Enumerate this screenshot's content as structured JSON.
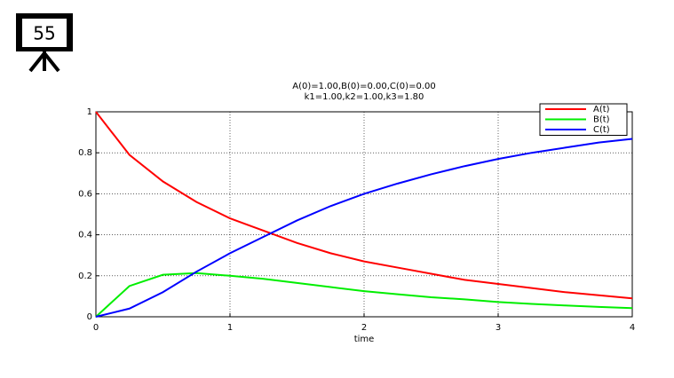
{
  "badge": "55",
  "chart_data": {
    "type": "line",
    "title": [
      "A(0)=1.00,B(0)=0.00,C(0)=0.00",
      "k1=1.00,k2=1.00,k3=1.80"
    ],
    "x_label": "time",
    "x": [
      0,
      0.25,
      0.5,
      0.75,
      1,
      1.25,
      1.5,
      1.75,
      2,
      2.25,
      2.5,
      2.75,
      3,
      3.25,
      3.5,
      3.75,
      4
    ],
    "series": [
      {
        "name": "A(t)",
        "color": "#ff0000",
        "values": [
          1,
          0.79,
          0.66,
          0.56,
          0.48,
          0.42,
          0.36,
          0.31,
          0.27,
          0.24,
          0.21,
          0.18,
          0.16,
          0.14,
          0.12,
          0.105,
          0.09
        ]
      },
      {
        "name": "B(t)",
        "color": "#00ee00",
        "values": [
          0,
          0.15,
          0.205,
          0.213,
          0.2,
          0.185,
          0.165,
          0.145,
          0.125,
          0.11,
          0.095,
          0.085,
          0.072,
          0.063,
          0.055,
          0.048,
          0.042
        ]
      },
      {
        "name": "C(t)",
        "color": "#0000ff",
        "values": [
          0,
          0.04,
          0.12,
          0.22,
          0.31,
          0.39,
          0.47,
          0.54,
          0.6,
          0.65,
          0.695,
          0.735,
          0.77,
          0.8,
          0.825,
          0.85,
          0.868
        ]
      }
    ],
    "xlim": [
      0,
      4
    ],
    "xticks": [
      0,
      1,
      2,
      3,
      4
    ],
    "ylim": [
      0,
      1
    ],
    "yticks": [
      0,
      0.2,
      0.4,
      0.6,
      0.8,
      1
    ],
    "grid": true,
    "legend": "upper right"
  }
}
